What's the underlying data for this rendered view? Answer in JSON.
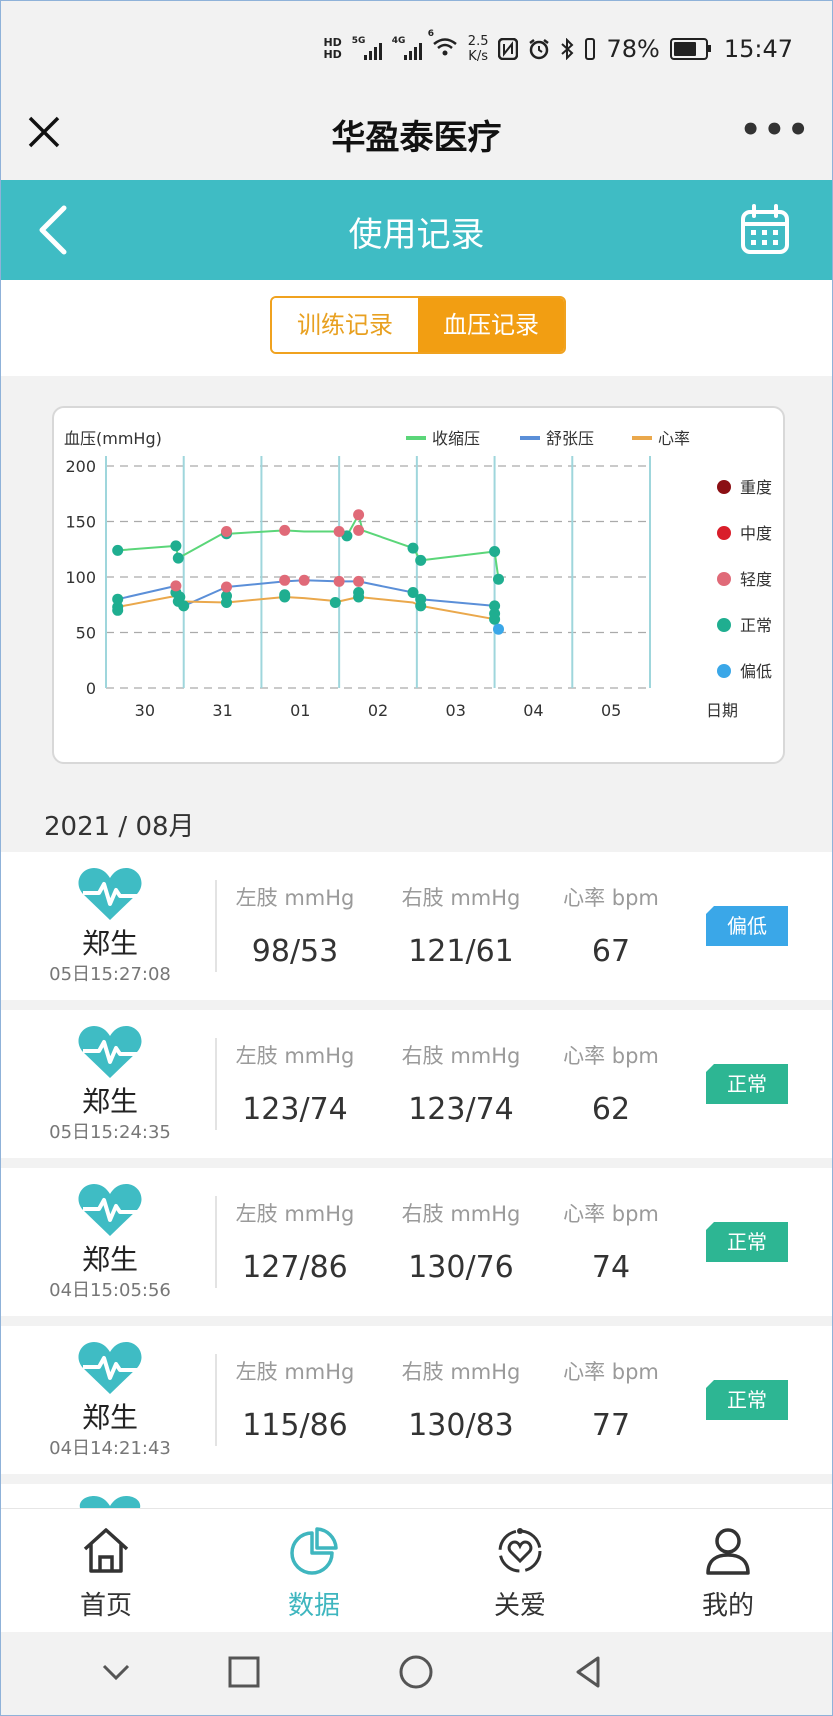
{
  "status_bar": {
    "hd1": "HD",
    "hd2": "HD",
    "sig1_label": "5G",
    "sig2_label": "4G",
    "wifi_label": "6",
    "speed_value": "2.5",
    "speed_unit": "K/s",
    "battery": "78%",
    "time": "15:47"
  },
  "mini_program": {
    "title": "华盈泰医疗",
    "more": "•••"
  },
  "header": {
    "title": "使用记录"
  },
  "segment": {
    "tab1": "训练记录",
    "tab2": "血压记录",
    "active": "血压记录"
  },
  "chart_data": {
    "type": "line",
    "ylabel": "血压(mmHg)",
    "xlabel": "日期",
    "ylim": [
      0,
      200
    ],
    "yticks": [
      "0",
      "50",
      "100",
      "150",
      "200"
    ],
    "categories": [
      "30",
      "31",
      "01",
      "02",
      "03",
      "04",
      "05"
    ],
    "series": [
      {
        "name": "收缩压",
        "color": "#5bd679",
        "points": [
          [
            0.15,
            124
          ],
          [
            0.9,
            128
          ],
          [
            0.93,
            117
          ],
          [
            1.55,
            141
          ],
          [
            1.58,
            139
          ],
          [
            2.3,
            142
          ],
          [
            2.55,
            141
          ],
          [
            3.0,
            141
          ],
          [
            3.1,
            137
          ],
          [
            3.25,
            156
          ],
          [
            3.3,
            142
          ],
          [
            3.95,
            126
          ],
          [
            4.05,
            115
          ],
          [
            5.0,
            123
          ],
          [
            5.05,
            98
          ]
        ]
      },
      {
        "name": "舒张压",
        "color": "#5b8fd8",
        "points": [
          [
            0.15,
            80
          ],
          [
            0.9,
            92
          ],
          [
            0.95,
            85
          ],
          [
            1.0,
            74
          ],
          [
            1.55,
            91
          ],
          [
            2.3,
            96
          ],
          [
            2.55,
            97
          ],
          [
            3.0,
            96
          ],
          [
            3.25,
            96
          ],
          [
            3.95,
            86
          ],
          [
            4.05,
            80
          ],
          [
            5.0,
            74
          ],
          [
            5.05,
            53
          ]
        ]
      },
      {
        "name": "心率",
        "color": "#eaa84c",
        "points": [
          [
            0.15,
            73
          ],
          [
            0.9,
            83
          ],
          [
            0.93,
            78
          ],
          [
            1.55,
            77
          ],
          [
            2.3,
            82
          ],
          [
            2.55,
            81
          ],
          [
            3.0,
            78
          ],
          [
            3.25,
            82
          ],
          [
            3.95,
            77
          ],
          [
            4.05,
            74
          ],
          [
            5.0,
            62
          ],
          [
            5.05,
            67
          ]
        ]
      }
    ],
    "markers": [
      {
        "level": "正常",
        "points": [
          [
            0.15,
            124
          ],
          [
            0.15,
            80
          ],
          [
            0.15,
            73
          ],
          [
            0.15,
            70
          ],
          [
            0.9,
            128
          ],
          [
            0.93,
            117
          ],
          [
            0.9,
            86
          ],
          [
            0.95,
            82
          ],
          [
            0.93,
            78
          ],
          [
            1.0,
            74
          ],
          [
            1.55,
            139
          ],
          [
            1.55,
            83
          ],
          [
            1.55,
            77
          ],
          [
            2.3,
            84
          ],
          [
            2.3,
            82
          ],
          [
            2.95,
            77
          ],
          [
            3.1,
            137
          ],
          [
            3.25,
            86
          ],
          [
            3.25,
            82
          ],
          [
            3.95,
            126
          ],
          [
            3.95,
            86
          ],
          [
            4.05,
            115
          ],
          [
            4.05,
            80
          ],
          [
            4.05,
            74
          ],
          [
            5.0,
            123
          ],
          [
            5.05,
            98
          ],
          [
            5.0,
            74
          ],
          [
            5.0,
            67
          ],
          [
            5.0,
            62
          ]
        ]
      },
      {
        "level": "轻度",
        "points": [
          [
            0.9,
            92
          ],
          [
            1.55,
            141
          ],
          [
            1.55,
            91
          ],
          [
            2.3,
            142
          ],
          [
            2.3,
            97
          ],
          [
            2.55,
            97
          ],
          [
            3.0,
            141
          ],
          [
            3.0,
            96
          ],
          [
            3.25,
            156
          ],
          [
            3.25,
            142
          ],
          [
            3.25,
            96
          ]
        ]
      },
      {
        "level": "偏低",
        "points": [
          [
            5.05,
            53
          ]
        ]
      }
    ],
    "status_legend": [
      {
        "label": "重度",
        "color": "#8b0f14"
      },
      {
        "label": "中度",
        "color": "#d91e2a"
      },
      {
        "label": "轻度",
        "color": "#e06a78"
      },
      {
        "label": "正常",
        "color": "#1fae90"
      },
      {
        "label": "偏低",
        "color": "#3aa7e8"
      }
    ],
    "grid": "dashed-horizontal",
    "legend_position": "top-right"
  },
  "month_label": "2021 / 08月",
  "records": [
    {
      "name": "郑生",
      "time": "05日15:27:08",
      "left_label": "左肢 mmHg",
      "left": "98/53",
      "right_label": "右肢 mmHg",
      "right": "121/61",
      "hr_label": "心率 bpm",
      "hr": "67",
      "status": "偏低"
    },
    {
      "name": "郑生",
      "time": "05日15:24:35",
      "left_label": "左肢 mmHg",
      "left": "123/74",
      "right_label": "右肢 mmHg",
      "right": "123/74",
      "hr_label": "心率 bpm",
      "hr": "62",
      "status": "正常"
    },
    {
      "name": "郑生",
      "time": "04日15:05:56",
      "left_label": "左肢 mmHg",
      "left": "127/86",
      "right_label": "右肢 mmHg",
      "right": "130/76",
      "hr_label": "心率 bpm",
      "hr": "74",
      "status": "正常"
    },
    {
      "name": "郑生",
      "time": "04日14:21:43",
      "left_label": "左肢 mmHg",
      "left": "115/86",
      "right_label": "右肢 mmHg",
      "right": "130/83",
      "hr_label": "心率 bpm",
      "hr": "77",
      "status": "正常"
    }
  ],
  "nav": [
    {
      "label": "首页",
      "icon": "home-icon"
    },
    {
      "label": "数据",
      "icon": "pie-chart-icon",
      "active": true
    },
    {
      "label": "关爱",
      "icon": "care-heart-icon"
    },
    {
      "label": "我的",
      "icon": "profile-icon"
    }
  ],
  "colors": {
    "accent": "#3fbcc4",
    "segment_active": "#f29e12",
    "tag_low": "#3aa7e8",
    "tag_normal": "#2db693"
  }
}
